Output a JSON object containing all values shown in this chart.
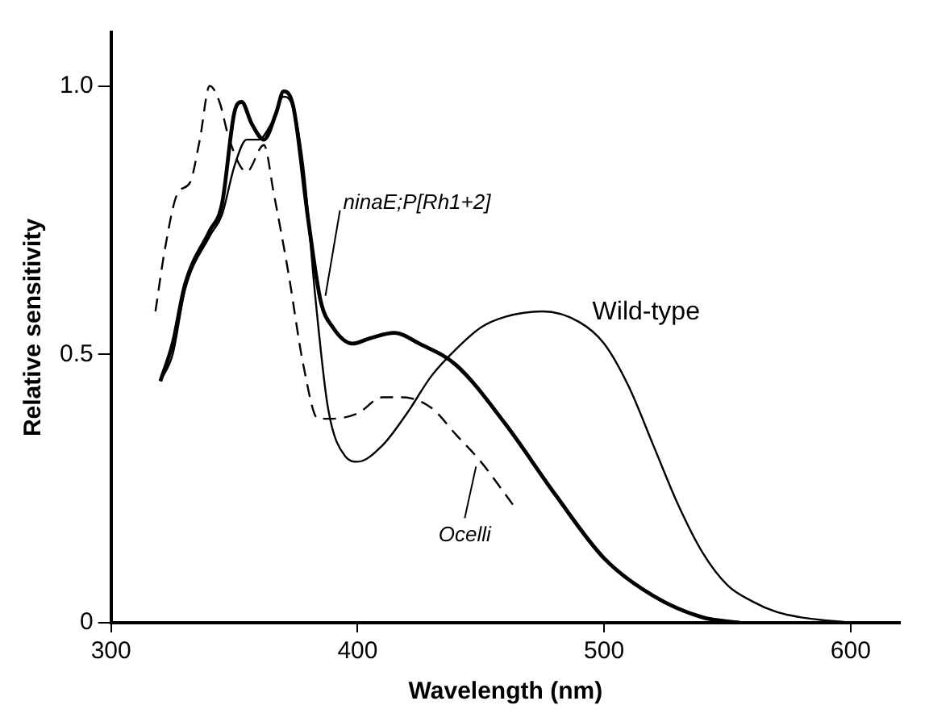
{
  "chart_data": {
    "type": "line",
    "xlabel": "Wavelength (nm)",
    "ylabel": "Relative sensitivity",
    "xlim": [
      300,
      620
    ],
    "ylim": [
      0,
      1.1
    ],
    "xticks": [
      300,
      400,
      500,
      600
    ],
    "yticks": [
      0,
      0.5,
      {
        "value": 1,
        "label": "1.0"
      }
    ],
    "grid": false,
    "legend": false,
    "marker": "none",
    "series": [
      {
        "name": "Wild-type",
        "color": "#000000",
        "line_style": "solid",
        "x": [
          320,
          325,
          330,
          340,
          345,
          350,
          355,
          360,
          365,
          370,
          373,
          378,
          383,
          388,
          395,
          400,
          410,
          420,
          430,
          440,
          450,
          460,
          475,
          490,
          500,
          510,
          520,
          530,
          540,
          550,
          560,
          570,
          580,
          600
        ],
        "values": [
          0.45,
          0.5,
          0.62,
          0.72,
          0.76,
          0.85,
          0.9,
          0.9,
          0.93,
          0.98,
          0.97,
          0.85,
          0.6,
          0.4,
          0.31,
          0.3,
          0.33,
          0.39,
          0.46,
          0.51,
          0.55,
          0.57,
          0.58,
          0.56,
          0.52,
          0.44,
          0.33,
          0.22,
          0.13,
          0.07,
          0.04,
          0.02,
          0.01,
          0
        ]
      },
      {
        "name": "ninaE;P[Rh1+2]",
        "color": "#000000",
        "line_style": "solid",
        "x": [
          320,
          325,
          330,
          340,
          345,
          350,
          353,
          357,
          362,
          367,
          370,
          374,
          380,
          385,
          390,
          398,
          405,
          415,
          425,
          440,
          460,
          480,
          500,
          520,
          540,
          555
        ],
        "values": [
          0.45,
          0.52,
          0.63,
          0.73,
          0.78,
          0.95,
          0.97,
          0.93,
          0.9,
          0.95,
          0.99,
          0.96,
          0.75,
          0.6,
          0.55,
          0.52,
          0.53,
          0.54,
          0.52,
          0.48,
          0.37,
          0.24,
          0.12,
          0.05,
          0.01,
          0
        ]
      },
      {
        "name": "Ocelli",
        "color": "#000000",
        "line_style": "dashed",
        "x": [
          318,
          322,
          327,
          332,
          336,
          340,
          344,
          348,
          355,
          362,
          366,
          372,
          378,
          384,
          389,
          400,
          410,
          418,
          430,
          440,
          450,
          463
        ],
        "values": [
          0.58,
          0.7,
          0.8,
          0.82,
          0.9,
          1.0,
          0.97,
          0.9,
          0.84,
          0.89,
          0.8,
          0.65,
          0.48,
          0.38,
          0.38,
          0.39,
          0.42,
          0.42,
          0.4,
          0.35,
          0.3,
          0.22
        ]
      }
    ]
  }
}
